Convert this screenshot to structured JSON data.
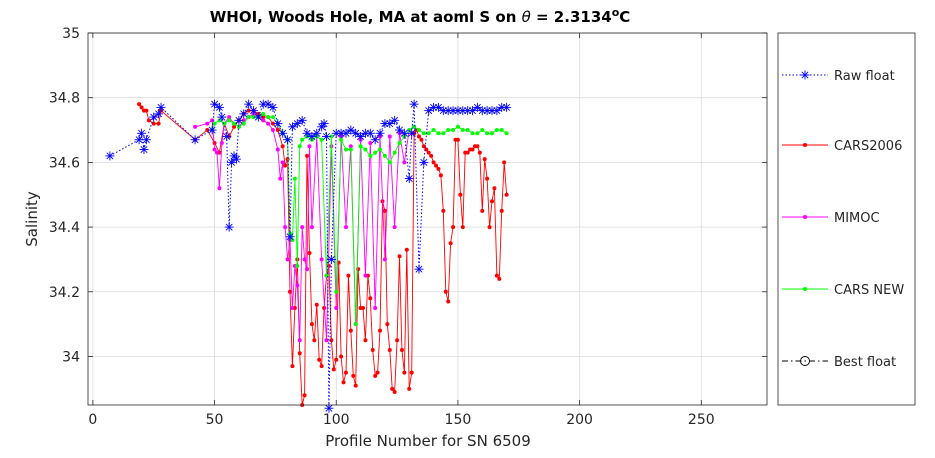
{
  "chart_data": {
    "type": "line",
    "title": "WHOI, Woods Hole, MA at aoml S on θ = 2.3134°C",
    "title_parts": {
      "prefix": "WHOI, Woods Hole, MA at aoml S on ",
      "symbol": "θ",
      "value": " = 2.3134",
      "degree": "o",
      "unit": "C"
    },
    "xlabel": "Profile Number for SN 6509",
    "ylabel": "Salinity",
    "xlim": [
      -2,
      277
    ],
    "ylim": [
      33.85,
      35.0
    ],
    "xticks": [
      0,
      50,
      100,
      150,
      200,
      250
    ],
    "yticks": [
      34.0,
      34.2,
      34.4,
      34.6,
      34.8,
      35.0
    ],
    "ytick_labels": [
      "34",
      "34.2",
      "34.4",
      "34.6",
      "34.8",
      "35"
    ],
    "grid": true,
    "legend_position": "outside-right",
    "series": [
      {
        "name": "Raw float",
        "color": "#0000ff",
        "line": "dotted",
        "marker": "asterisk",
        "x": [
          7,
          19,
          20,
          21,
          22,
          25,
          27,
          28,
          42,
          49,
          50,
          52,
          53,
          55,
          56,
          57,
          58,
          59,
          60,
          62,
          64,
          66,
          68,
          70,
          72,
          74,
          76,
          78,
          80,
          81,
          82,
          84,
          86,
          88,
          90,
          92,
          94,
          95,
          96,
          97,
          98,
          100,
          102,
          104,
          106,
          108,
          110,
          112,
          114,
          116,
          118,
          120,
          122,
          124,
          126,
          128,
          130,
          131,
          132,
          134,
          136,
          138,
          140,
          142,
          144,
          146,
          148,
          150,
          152,
          154,
          156,
          158,
          160,
          162,
          164,
          166,
          168,
          170
        ],
        "y": [
          34.62,
          34.67,
          34.69,
          34.64,
          34.67,
          34.74,
          34.75,
          34.77,
          34.67,
          34.7,
          34.78,
          34.77,
          34.74,
          34.68,
          34.4,
          34.6,
          34.62,
          34.61,
          34.73,
          34.75,
          34.78,
          34.76,
          34.74,
          34.78,
          34.78,
          34.77,
          34.72,
          34.69,
          34.67,
          34.37,
          34.71,
          34.72,
          34.73,
          34.69,
          34.68,
          34.69,
          34.71,
          34.72,
          34.68,
          33.84,
          34.3,
          34.69,
          34.69,
          34.69,
          34.7,
          34.69,
          34.68,
          34.69,
          34.69,
          34.67,
          34.69,
          34.72,
          34.72,
          34.73,
          34.7,
          34.69,
          34.55,
          34.69,
          34.78,
          34.27,
          34.6,
          34.76,
          34.77,
          34.77,
          34.76,
          34.76,
          34.76,
          34.76,
          34.76,
          34.76,
          34.76,
          34.77,
          34.76,
          34.76,
          34.76,
          34.76,
          34.77,
          34.77
        ]
      },
      {
        "name": "CARS2006",
        "color": "#ff0000",
        "line": "solid",
        "marker": "dot",
        "x": [
          19,
          20,
          21,
          22,
          23,
          25,
          27,
          28,
          42,
          47,
          50,
          52,
          54,
          56,
          58,
          60,
          62,
          64,
          66,
          68,
          70,
          72,
          74,
          76,
          78,
          79,
          80,
          81,
          82,
          83,
          84,
          85,
          86,
          87,
          88,
          89,
          90,
          91,
          92,
          93,
          94,
          95,
          96,
          97,
          98,
          99,
          100,
          101,
          102,
          103,
          104,
          105,
          106,
          107,
          108,
          109,
          110,
          111,
          112,
          113,
          114,
          115,
          116,
          117,
          118,
          119,
          120,
          121,
          122,
          123,
          124,
          125,
          126,
          127,
          128,
          129,
          130,
          131,
          132,
          133,
          134,
          135,
          136,
          137,
          138,
          139,
          140,
          141,
          142,
          143,
          144,
          145,
          146,
          147,
          148,
          149,
          150,
          151,
          152,
          153,
          154,
          155,
          156,
          157,
          158,
          159,
          160,
          161,
          162,
          163,
          164,
          165,
          166,
          167,
          168,
          169,
          170
        ],
        "y": [
          34.78,
          34.77,
          34.76,
          34.76,
          34.73,
          34.72,
          34.72,
          34.76,
          34.67,
          34.7,
          34.66,
          34.63,
          34.72,
          34.68,
          34.71,
          34.73,
          34.75,
          34.76,
          34.76,
          34.75,
          34.74,
          34.74,
          34.72,
          34.7,
          34.65,
          34.59,
          34.61,
          34.2,
          33.97,
          34.15,
          34.3,
          34.01,
          33.85,
          33.88,
          34.62,
          34.32,
          34.1,
          34.05,
          34.16,
          33.99,
          33.97,
          34.15,
          34.25,
          34.28,
          34.05,
          33.96,
          33.99,
          34.29,
          34.0,
          33.92,
          33.95,
          34.25,
          34.08,
          33.94,
          33.91,
          34.27,
          34.15,
          34.15,
          34.05,
          34.25,
          34.18,
          34.02,
          33.94,
          33.95,
          34.08,
          34.48,
          34.45,
          34.1,
          34.02,
          33.9,
          33.89,
          34.05,
          34.31,
          34.02,
          33.95,
          34.33,
          33.9,
          33.95,
          34.69,
          34.7,
          34.68,
          34.67,
          34.65,
          34.64,
          34.63,
          34.62,
          34.6,
          34.59,
          34.58,
          34.56,
          34.45,
          34.2,
          34.17,
          34.35,
          34.4,
          34.67,
          34.67,
          34.5,
          34.4,
          34.63,
          34.63,
          34.64,
          34.64,
          34.65,
          34.65,
          34.63,
          34.45,
          34.61,
          34.55,
          34.4,
          34.48,
          34.52,
          34.25,
          34.24,
          34.45,
          34.6,
          34.5
        ],
        "y_extra_note": ""
      },
      {
        "name": "MIMOC",
        "color": "#ff00ff",
        "line": "solid",
        "marker": "dot",
        "x": [
          42,
          47,
          49,
          50,
          51,
          52,
          53,
          54,
          56,
          58,
          60,
          62,
          64,
          66,
          68,
          70,
          72,
          74,
          76,
          77,
          78,
          79,
          80,
          81,
          82,
          83,
          84,
          85,
          86,
          87,
          88,
          89,
          90,
          92,
          94,
          96,
          98,
          100,
          102,
          104,
          106,
          108,
          110,
          112,
          114,
          116,
          118,
          120,
          122,
          124,
          126,
          128,
          130
        ],
        "y": [
          34.71,
          34.72,
          34.73,
          34.64,
          34.63,
          34.52,
          34.66,
          34.72,
          34.74,
          34.72,
          34.71,
          34.73,
          34.74,
          34.75,
          34.74,
          34.73,
          34.72,
          34.7,
          34.64,
          34.55,
          34.6,
          34.4,
          34.3,
          34.36,
          34.15,
          34.28,
          34.22,
          34.05,
          34.4,
          34.3,
          34.27,
          34.65,
          34.4,
          34.68,
          34.3,
          34.05,
          34.65,
          34.15,
          34.68,
          34.4,
          34.65,
          34.1,
          34.67,
          34.25,
          34.66,
          34.15,
          34.68,
          34.3,
          34.68,
          34.4,
          34.69,
          34.6,
          34.7
        ]
      },
      {
        "name": "CARS NEW",
        "color": "#00ff00",
        "line": "solid",
        "marker": "dot",
        "x": [
          49,
          50,
          52,
          54,
          56,
          58,
          60,
          62,
          64,
          66,
          68,
          70,
          72,
          74,
          76,
          78,
          80,
          81,
          82,
          83,
          84,
          85,
          86,
          88,
          90,
          92,
          94,
          96,
          98,
          100,
          102,
          104,
          106,
          108,
          110,
          112,
          114,
          116,
          118,
          120,
          122,
          124,
          126,
          128,
          130,
          132,
          134,
          136,
          138,
          140,
          142,
          144,
          146,
          148,
          150,
          152,
          154,
          156,
          158,
          160,
          162,
          164,
          166,
          168,
          170
        ],
        "y": [
          34.7,
          34.72,
          34.73,
          34.72,
          34.73,
          34.72,
          34.71,
          34.72,
          34.74,
          34.74,
          34.74,
          34.75,
          34.74,
          34.74,
          34.72,
          34.69,
          34.67,
          34.38,
          34.36,
          34.55,
          34.28,
          34.65,
          34.67,
          34.68,
          34.67,
          34.68,
          34.67,
          34.25,
          34.68,
          34.2,
          34.67,
          34.64,
          34.64,
          34.1,
          34.65,
          34.64,
          34.62,
          34.63,
          34.64,
          34.62,
          34.6,
          34.63,
          34.66,
          34.68,
          34.7,
          34.71,
          34.7,
          34.69,
          34.69,
          34.7,
          34.69,
          34.69,
          34.7,
          34.7,
          34.71,
          34.7,
          34.7,
          34.69,
          34.69,
          34.7,
          34.69,
          34.69,
          34.7,
          34.7,
          34.69
        ]
      },
      {
        "name": "Best float",
        "color": "#000000",
        "line": "dashdot",
        "marker": "circle",
        "x": [],
        "y": []
      }
    ]
  }
}
